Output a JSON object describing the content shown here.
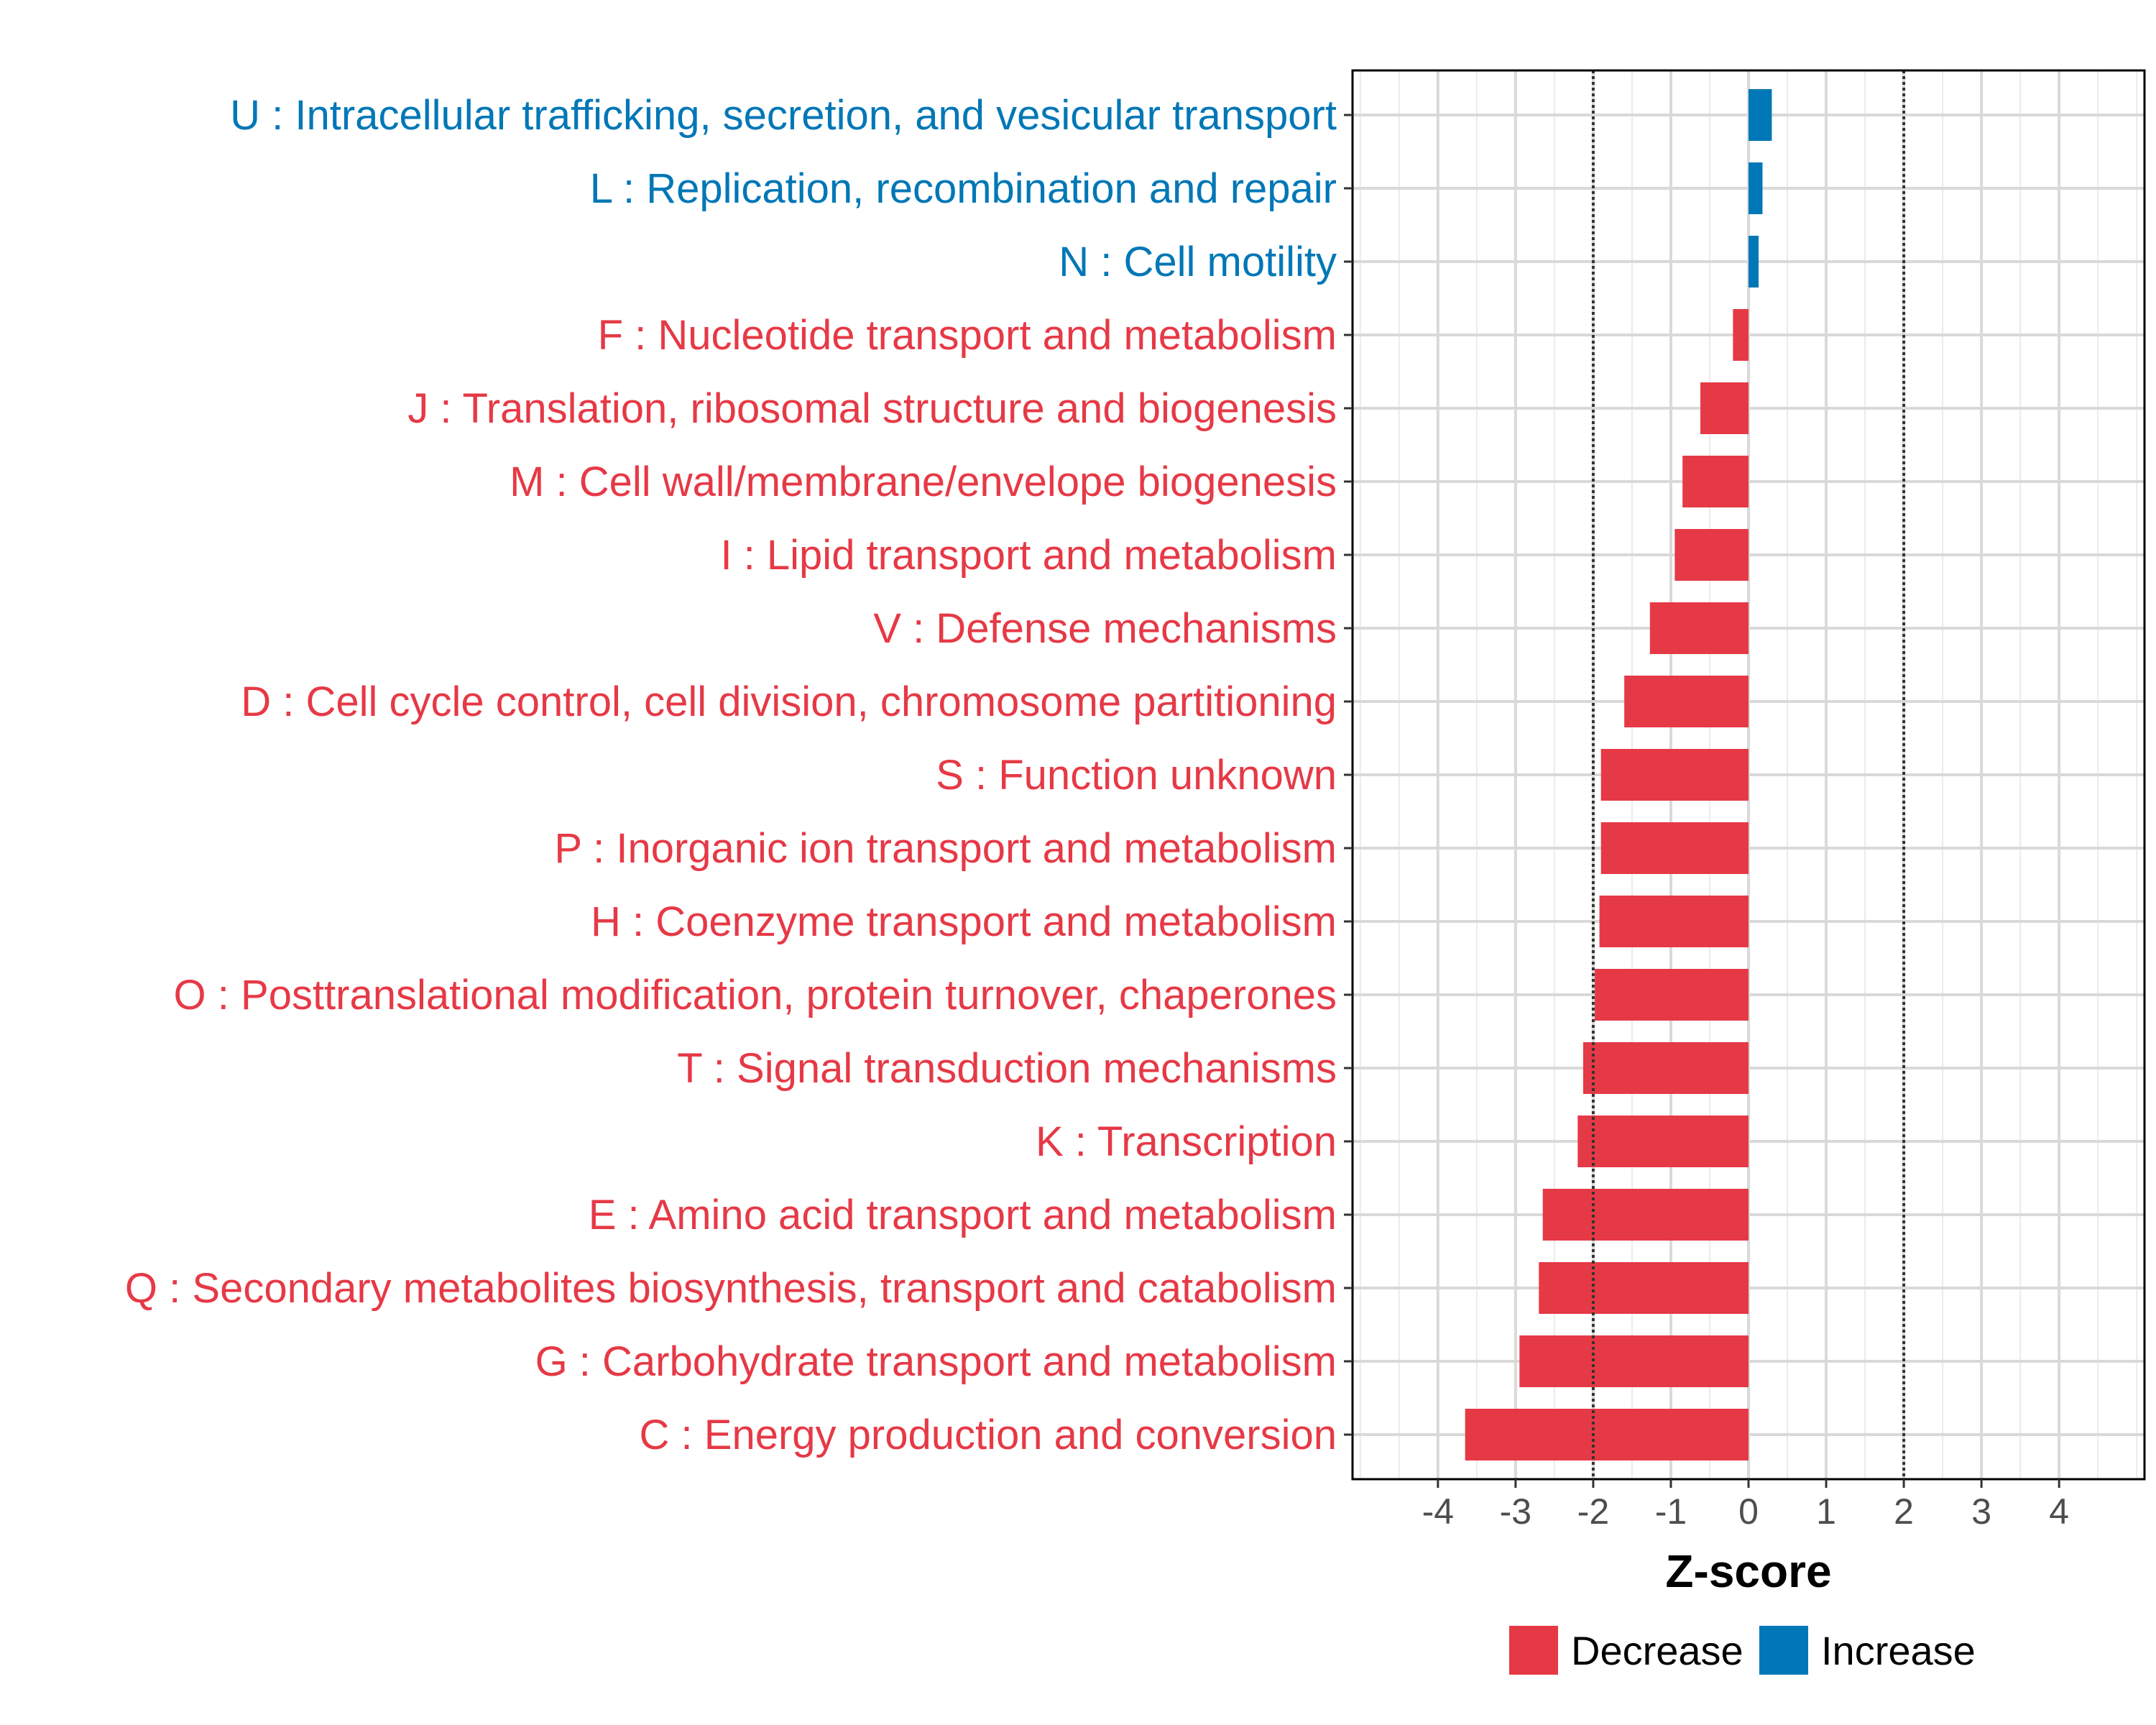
{
  "chart_data": {
    "type": "bar",
    "orientation": "horizontal",
    "title": "",
    "xlabel": "Z-score",
    "ylabel": "",
    "xlim": [
      -5.1,
      5.1
    ],
    "x_ticks": [
      -4,
      -3,
      -2,
      -1,
      0,
      1,
      2,
      3,
      4
    ],
    "x_tick_labels": [
      "-4",
      "-3",
      "-2",
      "-1",
      "0",
      "1",
      "2",
      "3",
      "4"
    ],
    "reference_lines": [
      -2,
      2
    ],
    "grid": true,
    "legend_position": "bottom",
    "legend": [
      {
        "key": "decrease",
        "label": "Decrease",
        "color": "#E63946"
      },
      {
        "key": "increase",
        "label": "Increase",
        "color": "#0077B6"
      }
    ],
    "categories": [
      "U : Intracellular trafficking, secretion, and vesicular transport",
      "L : Replication, recombination and repair",
      "N : Cell motility",
      "F : Nucleotide transport and metabolism",
      "J : Translation, ribosomal structure and biogenesis",
      "M : Cell wall/membrane/envelope biogenesis",
      "I : Lipid transport and metabolism",
      "V : Defense mechanisms",
      "D : Cell cycle control, cell division, chromosome partitioning",
      "S : Function unknown",
      "P : Inorganic ion transport and metabolism",
      "H : Coenzyme transport and metabolism",
      "O : Posttranslational modification, protein turnover, chaperones",
      "T : Signal transduction mechanisms",
      "K : Transcription",
      "E : Amino acid transport and metabolism",
      "Q : Secondary metabolites biosynthesis, transport and catabolism",
      "G : Carbohydrate transport and metabolism",
      "C : Energy production and conversion"
    ],
    "values": [
      0.3,
      0.18,
      0.13,
      -0.2,
      -0.62,
      -0.85,
      -0.95,
      -1.27,
      -1.6,
      -1.9,
      -1.9,
      -1.92,
      -1.98,
      -2.13,
      -2.2,
      -2.65,
      -2.7,
      -2.95,
      -3.65
    ],
    "groups": [
      "increase",
      "increase",
      "increase",
      "decrease",
      "decrease",
      "decrease",
      "decrease",
      "decrease",
      "decrease",
      "decrease",
      "decrease",
      "decrease",
      "decrease",
      "decrease",
      "decrease",
      "decrease",
      "decrease",
      "decrease",
      "decrease"
    ]
  }
}
